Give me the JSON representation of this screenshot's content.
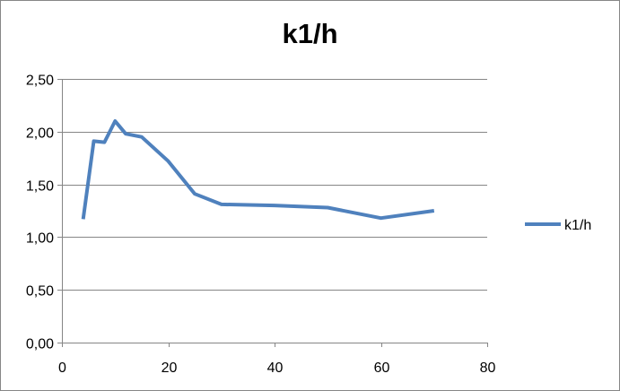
{
  "chart_data": {
    "type": "line",
    "title": "k1/h",
    "xlabel": "",
    "ylabel": "",
    "xlim": [
      0,
      80
    ],
    "ylim": [
      0,
      2.5
    ],
    "x_ticks": [
      0,
      20,
      40,
      60,
      80
    ],
    "x_tick_labels": [
      "0",
      "20",
      "40",
      "60",
      "80"
    ],
    "y_ticks": [
      0,
      0.5,
      1,
      1.5,
      2,
      2.5
    ],
    "y_tick_labels": [
      "0,00",
      "0,50",
      "1,00",
      "1,50",
      "2,00",
      "2,50"
    ],
    "grid": "horizontal",
    "legend": "right",
    "series": [
      {
        "name": "k1/h",
        "color": "#4F81BD",
        "x": [
          4,
          6,
          8,
          10,
          12,
          15,
          20,
          25,
          30,
          40,
          50,
          60,
          70
        ],
        "y": [
          1.17,
          1.91,
          1.9,
          2.1,
          1.98,
          1.95,
          1.72,
          1.41,
          1.31,
          1.3,
          1.28,
          1.18,
          1.25
        ]
      }
    ],
    "colors": {
      "grid": "#868686",
      "axis": "#868686",
      "frame": "#868686"
    }
  }
}
